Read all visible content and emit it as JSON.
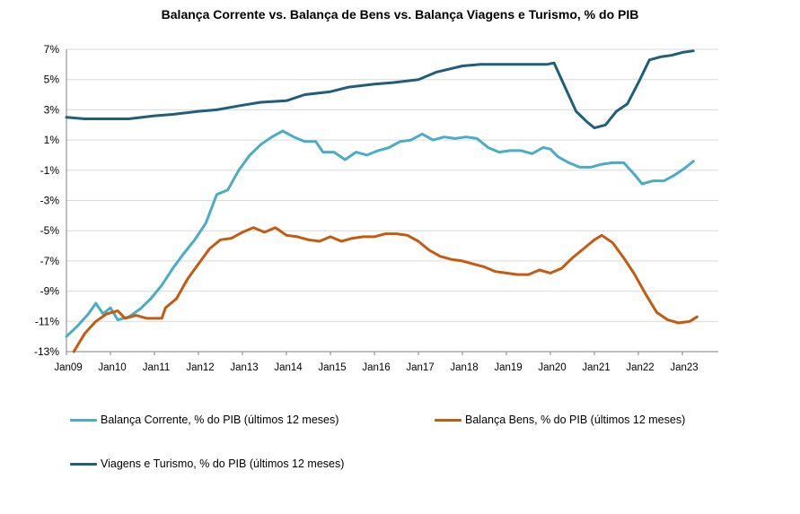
{
  "chart_data": {
    "type": "line",
    "title": "Balança Corrente vs. Balança de Bens vs. Balança Viagens e Turismo, % do PIB",
    "ylim": [
      -13,
      7
    ],
    "yticks": [
      7,
      5,
      3,
      1,
      -1,
      -3,
      -5,
      -7,
      -9,
      -11,
      -13
    ],
    "ytick_labels": [
      "7%",
      "5%",
      "3%",
      "1%",
      "-1%",
      "-3%",
      "-5%",
      "-7%",
      "-9%",
      "-11%",
      "-13%"
    ],
    "xlim": [
      "2009-01",
      "2023-06"
    ],
    "xtick_labels": [
      "Jan09",
      "Jan10",
      "Jan11",
      "Jan12",
      "Jan13",
      "Jan14",
      "Jan15",
      "Jan16",
      "Jan17",
      "Jan18",
      "Jan19",
      "Jan20",
      "Jan21",
      "Jan22",
      "Jan23"
    ],
    "grid": "horizontal",
    "legend_position": "bottom",
    "series": [
      {
        "name": "Balança Corrente,  % do PIB (últimos 12 meses)",
        "color": "#4bacc6",
        "points": [
          [
            "2009-01",
            -12.0
          ],
          [
            "2009-04",
            -11.3
          ],
          [
            "2009-07",
            -10.5
          ],
          [
            "2009-09",
            -9.8
          ],
          [
            "2009-11",
            -10.5
          ],
          [
            "2010-01",
            -10.1
          ],
          [
            "2010-03",
            -10.9
          ],
          [
            "2010-06",
            -10.7
          ],
          [
            "2010-09",
            -10.2
          ],
          [
            "2010-12",
            -9.5
          ],
          [
            "2011-03",
            -8.6
          ],
          [
            "2011-06",
            -7.5
          ],
          [
            "2011-09",
            -6.5
          ],
          [
            "2011-12",
            -5.6
          ],
          [
            "2012-03",
            -4.5
          ],
          [
            "2012-06",
            -2.6
          ],
          [
            "2012-09",
            -2.3
          ],
          [
            "2012-12",
            -1.0
          ],
          [
            "2013-03",
            0.0
          ],
          [
            "2013-06",
            0.7
          ],
          [
            "2013-09",
            1.2
          ],
          [
            "2013-12",
            1.6
          ],
          [
            "2014-03",
            1.2
          ],
          [
            "2014-06",
            0.9
          ],
          [
            "2014-09",
            0.9
          ],
          [
            "2014-11",
            0.2
          ],
          [
            "2015-02",
            0.2
          ],
          [
            "2015-05",
            -0.3
          ],
          [
            "2015-08",
            0.2
          ],
          [
            "2015-11",
            0.0
          ],
          [
            "2016-02",
            0.3
          ],
          [
            "2016-05",
            0.5
          ],
          [
            "2016-08",
            0.9
          ],
          [
            "2016-11",
            1.0
          ],
          [
            "2017-02",
            1.4
          ],
          [
            "2017-05",
            1.0
          ],
          [
            "2017-08",
            1.2
          ],
          [
            "2017-11",
            1.1
          ],
          [
            "2018-02",
            1.2
          ],
          [
            "2018-05",
            1.1
          ],
          [
            "2018-08",
            0.5
          ],
          [
            "2018-11",
            0.2
          ],
          [
            "2019-02",
            0.3
          ],
          [
            "2019-05",
            0.3
          ],
          [
            "2019-08",
            0.1
          ],
          [
            "2019-11",
            0.5
          ],
          [
            "2020-01",
            0.4
          ],
          [
            "2020-03",
            -0.1
          ],
          [
            "2020-06",
            -0.5
          ],
          [
            "2020-09",
            -0.8
          ],
          [
            "2020-12",
            -0.8
          ],
          [
            "2021-03",
            -0.6
          ],
          [
            "2021-06",
            -0.5
          ],
          [
            "2021-09",
            -0.5
          ],
          [
            "2021-12",
            -1.3
          ],
          [
            "2022-02",
            -1.9
          ],
          [
            "2022-05",
            -1.7
          ],
          [
            "2022-08",
            -1.7
          ],
          [
            "2022-11",
            -1.3
          ],
          [
            "2023-02",
            -0.8
          ],
          [
            "2023-04",
            -0.4
          ]
        ]
      },
      {
        "name": "Balança Bens,  % do PIB (últimos 12 meses)",
        "color": "#c55a11",
        "points": [
          [
            "2009-03",
            -13.0
          ],
          [
            "2009-06",
            -11.8
          ],
          [
            "2009-09",
            -11.0
          ],
          [
            "2009-12",
            -10.5
          ],
          [
            "2010-03",
            -10.3
          ],
          [
            "2010-05",
            -10.8
          ],
          [
            "2010-08",
            -10.6
          ],
          [
            "2010-11",
            -10.8
          ],
          [
            "2011-03",
            -10.8
          ],
          [
            "2011-04",
            -10.1
          ],
          [
            "2011-07",
            -9.5
          ],
          [
            "2011-10",
            -8.2
          ],
          [
            "2012-01",
            -7.2
          ],
          [
            "2012-04",
            -6.2
          ],
          [
            "2012-07",
            -5.6
          ],
          [
            "2012-10",
            -5.5
          ],
          [
            "2013-01",
            -5.1
          ],
          [
            "2013-04",
            -4.8
          ],
          [
            "2013-07",
            -5.1
          ],
          [
            "2013-10",
            -4.8
          ],
          [
            "2014-01",
            -5.3
          ],
          [
            "2014-04",
            -5.4
          ],
          [
            "2014-07",
            -5.6
          ],
          [
            "2014-10",
            -5.7
          ],
          [
            "2015-01",
            -5.4
          ],
          [
            "2015-04",
            -5.7
          ],
          [
            "2015-07",
            -5.5
          ],
          [
            "2015-10",
            -5.4
          ],
          [
            "2016-01",
            -5.4
          ],
          [
            "2016-04",
            -5.2
          ],
          [
            "2016-07",
            -5.2
          ],
          [
            "2016-10",
            -5.3
          ],
          [
            "2017-01",
            -5.7
          ],
          [
            "2017-04",
            -6.3
          ],
          [
            "2017-07",
            -6.7
          ],
          [
            "2017-10",
            -6.9
          ],
          [
            "2018-01",
            -7.0
          ],
          [
            "2018-04",
            -7.2
          ],
          [
            "2018-07",
            -7.4
          ],
          [
            "2018-10",
            -7.7
          ],
          [
            "2019-01",
            -7.8
          ],
          [
            "2019-04",
            -7.9
          ],
          [
            "2019-07",
            -7.9
          ],
          [
            "2019-10",
            -7.6
          ],
          [
            "2020-01",
            -7.8
          ],
          [
            "2020-04",
            -7.5
          ],
          [
            "2020-07",
            -6.8
          ],
          [
            "2020-10",
            -6.2
          ],
          [
            "2021-01",
            -5.6
          ],
          [
            "2021-03",
            -5.3
          ],
          [
            "2021-06",
            -5.8
          ],
          [
            "2021-09",
            -6.8
          ],
          [
            "2021-12",
            -7.9
          ],
          [
            "2022-03",
            -9.2
          ],
          [
            "2022-06",
            -10.4
          ],
          [
            "2022-09",
            -10.9
          ],
          [
            "2022-12",
            -11.1
          ],
          [
            "2023-03",
            -11.0
          ],
          [
            "2023-05",
            -10.7
          ]
        ]
      },
      {
        "name": "Viagens e Turismo,  % do PIB (últimos 12 meses)",
        "color": "#215e7a",
        "points": [
          [
            "2009-01",
            2.5
          ],
          [
            "2009-06",
            2.4
          ],
          [
            "2010-01",
            2.4
          ],
          [
            "2010-06",
            2.4
          ],
          [
            "2011-01",
            2.6
          ],
          [
            "2011-06",
            2.7
          ],
          [
            "2012-01",
            2.9
          ],
          [
            "2012-06",
            3.0
          ],
          [
            "2013-01",
            3.3
          ],
          [
            "2013-06",
            3.5
          ],
          [
            "2014-01",
            3.6
          ],
          [
            "2014-06",
            4.0
          ],
          [
            "2015-01",
            4.2
          ],
          [
            "2015-06",
            4.5
          ],
          [
            "2016-01",
            4.7
          ],
          [
            "2016-06",
            4.8
          ],
          [
            "2017-01",
            5.0
          ],
          [
            "2017-06",
            5.5
          ],
          [
            "2018-01",
            5.9
          ],
          [
            "2018-06",
            6.0
          ],
          [
            "2019-01",
            6.0
          ],
          [
            "2019-06",
            6.0
          ],
          [
            "2019-12",
            6.0
          ],
          [
            "2020-02",
            6.1
          ],
          [
            "2020-05",
            4.5
          ],
          [
            "2020-08",
            2.9
          ],
          [
            "2020-11",
            2.2
          ],
          [
            "2021-01",
            1.8
          ],
          [
            "2021-04",
            2.0
          ],
          [
            "2021-07",
            2.9
          ],
          [
            "2021-10",
            3.4
          ],
          [
            "2022-01",
            4.8
          ],
          [
            "2022-04",
            6.3
          ],
          [
            "2022-07",
            6.5
          ],
          [
            "2022-10",
            6.6
          ],
          [
            "2023-01",
            6.8
          ],
          [
            "2023-04",
            6.9
          ]
        ]
      }
    ]
  }
}
